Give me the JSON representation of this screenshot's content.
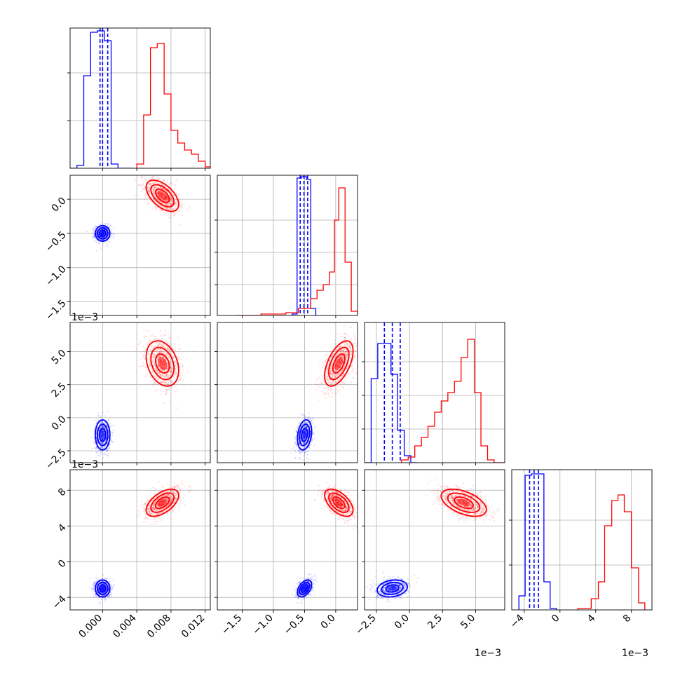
{
  "chart_data": {
    "type": "corner",
    "grid": true,
    "series": [
      {
        "name": "",
        "color": "#0000ff",
        "means": [
          0.0,
          -0.0005,
          -0.0013,
          -0.003
        ],
        "sds": [
          0.00045,
          6e-05,
          0.0006,
          0.0005
        ],
        "quantiles": {
          "p0": [
            -0.0003,
            0.0,
            0.0006
          ],
          "p1": [
            -0.00057,
            -0.00051,
            -0.00045
          ],
          "p2": [
            -0.0019,
            -0.0013,
            -0.0007
          ],
          "p3": [
            -0.0034,
            -0.0029,
            -0.0024
          ]
        }
      },
      {
        "name": "",
        "color": "#ff0000",
        "means": [
          0.007,
          5e-05,
          0.0041,
          0.0066
        ],
        "sds": [
          0.001,
          0.00012,
          0.0009,
          0.0008
        ]
      }
    ],
    "panels": [
      {
        "row": 0,
        "col": 0,
        "kind": "hist",
        "xlim": [
          -0.0038,
          0.0126
        ],
        "xticks": [],
        "yticks": [],
        "grid_x": [
          0.0,
          0.004,
          0.008,
          0.012
        ],
        "grid_y": [
          0.34,
          0.68
        ],
        "hists": [
          {
            "color": "#0000ff",
            "bins": [
              -0.0038,
              -0.003,
              -0.0022,
              -0.0014,
              -0.0006,
              0.0002,
              0.001,
              0.0018,
              0.0026,
              0.0034
            ],
            "counts": [
              0.0,
              0.02,
              0.66,
              0.97,
              0.98,
              0.91,
              0.03,
              0.0,
              0.0
            ]
          },
          {
            "color": "#ff0000",
            "bins": [
              0.004,
              0.0048,
              0.0056,
              0.0064,
              0.0072,
              0.008,
              0.0088,
              0.0096,
              0.0104,
              0.0112,
              0.012,
              0.0126
            ],
            "counts": [
              0.03,
              0.38,
              0.86,
              0.89,
              0.53,
              0.27,
              0.18,
              0.13,
              0.1,
              0.05,
              0.01
            ]
          }
        ]
      },
      {
        "row": 1,
        "col": 1,
        "kind": "hist",
        "xlim": [
          -0.0019,
          0.00035
        ],
        "xticks": [],
        "yticks": [],
        "grid_x": [
          -0.0015,
          -0.001,
          -0.0005,
          0.0
        ],
        "grid_y": [
          0.22,
          0.45,
          0.68
        ],
        "hists": [
          {
            "color": "#0000ff",
            "bins": [
              -0.0007,
              -0.00062,
              -0.00055,
              -0.00047,
              -0.0004,
              -0.00032
            ],
            "counts": [
              0.01,
              0.98,
              0.99,
              0.97,
              0.05
            ]
          },
          {
            "color": "#ff0000",
            "bins": [
              -0.0016,
              -0.0012,
              -0.0008,
              -0.0006,
              -0.0004,
              -0.0003,
              -0.0002,
              -0.0001,
              -2e-05,
              5e-05,
              0.00015,
              0.00025,
              0.00035
            ],
            "counts": [
              0.0,
              0.01,
              0.02,
              0.05,
              0.12,
              0.18,
              0.22,
              0.31,
              0.68,
              0.91,
              0.38,
              0.03
            ]
          }
        ]
      },
      {
        "row": 2,
        "col": 2,
        "kind": "hist",
        "xlim": [
          -0.0034,
          0.0072
        ],
        "xticks": [],
        "yticks": [],
        "grid_x": [
          -0.0025,
          0.0,
          0.0025,
          0.005
        ],
        "grid_y": [
          0.24,
          0.48,
          0.72
        ],
        "hists": [
          {
            "color": "#0000ff",
            "bins": [
              -0.0034,
              -0.0029,
              -0.0024,
              -0.0019,
              -0.0014,
              -0.0009,
              -0.0004,
              0.0001,
              0.0006
            ],
            "counts": [
              0.0,
              0.6,
              0.85,
              0.85,
              0.63,
              0.23,
              0.05,
              0.0
            ]
          },
          {
            "color": "#ff0000",
            "bins": [
              -0.0006,
              -0.0001,
              0.0004,
              0.0009,
              0.0014,
              0.0019,
              0.0024,
              0.0029,
              0.0034,
              0.0039,
              0.0044,
              0.0049,
              0.0054,
              0.0059,
              0.0064,
              0.0072
            ],
            "counts": [
              0.02,
              0.04,
              0.12,
              0.18,
              0.26,
              0.36,
              0.44,
              0.5,
              0.58,
              0.75,
              0.88,
              0.5,
              0.12,
              0.02,
              0.0
            ]
          }
        ]
      },
      {
        "row": 3,
        "col": 3,
        "kind": "hist",
        "xlim": [
          -0.0054,
          0.0103
        ],
        "xticks": [
          -0.004,
          0.0,
          0.004,
          0.008
        ],
        "xtick_labels": [
          "−4",
          "0",
          "4",
          "8"
        ],
        "yticks": [],
        "grid_x": [
          -0.004,
          0.0,
          0.004,
          0.008
        ],
        "grid_y": [
          0.32,
          0.64
        ],
        "x_offset": "1e−3",
        "hists": [
          {
            "color": "#0000ff",
            "bins": [
              -0.0046,
              -0.0039,
              -0.0032,
              -0.0025,
              -0.0018,
              -0.0011,
              -0.0004
            ],
            "counts": [
              0.1,
              0.96,
              0.97,
              0.97,
              0.2,
              0.01
            ]
          },
          {
            "color": "#ff0000",
            "bins": [
              0.002,
              0.0035,
              0.0043,
              0.005,
              0.0058,
              0.0065,
              0.0072,
              0.008,
              0.0088,
              0.0095
            ],
            "counts": [
              0.01,
              0.08,
              0.2,
              0.6,
              0.78,
              0.82,
              0.7,
              0.3,
              0.05
            ]
          }
        ]
      },
      {
        "row": 1,
        "col": 0,
        "kind": "scatter",
        "xlim": [
          -0.0038,
          0.0126
        ],
        "ylim": [
          -0.0017,
          0.00035
        ],
        "xticks": [],
        "yticks": [
          0.0,
          -0.0005,
          -0.001,
          -0.0015
        ],
        "ytick_labels": [
          "0.0",
          "−0.5",
          "−1.0",
          "−1.5"
        ],
        "grid_x": [
          0.0,
          0.004,
          0.008,
          0.012
        ],
        "grid_y": [
          0.0,
          -0.0005,
          -0.001,
          -0.0015
        ],
        "y_offset": "1e−3",
        "corr": [
          0.0,
          -0.55
        ]
      },
      {
        "row": 2,
        "col": 0,
        "kind": "scatter",
        "xlim": [
          -0.0038,
          0.0126
        ],
        "ylim": [
          -0.0034,
          0.0072
        ],
        "xticks": [],
        "yticks": [
          0.005,
          0.0025,
          0.0,
          -0.0025
        ],
        "ytick_labels": [
          "5.0",
          "2.5",
          "0.0",
          "−2.5"
        ],
        "grid_x": [
          0.0,
          0.004,
          0.008,
          0.012
        ],
        "grid_y": [
          0.005,
          0.0025,
          0.0,
          -0.0025
        ],
        "y_offset": "1e−3",
        "corr": [
          0.0,
          -0.3
        ]
      },
      {
        "row": 2,
        "col": 1,
        "kind": "scatter",
        "xlim": [
          -0.0019,
          0.00035
        ],
        "ylim": [
          -0.0034,
          0.0072
        ],
        "xticks": [],
        "yticks": [],
        "grid_x": [
          -0.0015,
          -0.001,
          -0.0005,
          0.0
        ],
        "grid_y": [
          0.005,
          0.0025,
          0.0,
          -0.0025
        ],
        "corr": [
          0.25,
          0.55
        ]
      },
      {
        "row": 3,
        "col": 0,
        "kind": "scatter",
        "xlim": [
          -0.0038,
          0.0126
        ],
        "ylim": [
          -0.0054,
          0.0103
        ],
        "xticks": [
          0.0,
          0.004,
          0.008,
          0.012
        ],
        "xtick_labels": [
          "0.000",
          "0.004",
          "0.008",
          "0.012"
        ],
        "yticks": [
          0.008,
          0.004,
          0.0,
          -0.004
        ],
        "ytick_labels": [
          "8",
          "4",
          "0",
          "−4"
        ],
        "grid_x": [
          0.0,
          0.004,
          0.008,
          0.012
        ],
        "grid_y": [
          0.008,
          0.004,
          0.0,
          -0.004
        ],
        "corr": [
          0.0,
          0.55
        ]
      },
      {
        "row": 3,
        "col": 1,
        "kind": "scatter",
        "xlim": [
          -0.0019,
          0.00035
        ],
        "ylim": [
          -0.0054,
          0.0103
        ],
        "xticks": [
          -0.0015,
          -0.001,
          -0.0005,
          0.0
        ],
        "xtick_labels": [
          "−1.5",
          "−1.0",
          "−0.5",
          "0.0"
        ],
        "yticks": [],
        "grid_x": [
          -0.0015,
          -0.001,
          -0.0005,
          0.0
        ],
        "grid_y": [
          0.008,
          0.004,
          0.0,
          -0.004
        ],
        "corr": [
          0.45,
          -0.55
        ]
      },
      {
        "row": 3,
        "col": 2,
        "kind": "scatter",
        "xlim": [
          -0.0034,
          0.0072
        ],
        "ylim": [
          -0.0054,
          0.0103
        ],
        "xticks": [
          -0.0025,
          0.0,
          0.0025,
          0.005
        ],
        "xtick_labels": [
          "−2.5",
          "0.0",
          "2.5",
          "5.0"
        ],
        "yticks": [],
        "grid_x": [
          -0.0025,
          0.0,
          0.0025,
          0.005
        ],
        "grid_y": [
          0.008,
          0.004,
          0.0,
          -0.004
        ],
        "x_offset": "1e−3",
        "corr": [
          0.2,
          -0.5
        ]
      }
    ]
  }
}
